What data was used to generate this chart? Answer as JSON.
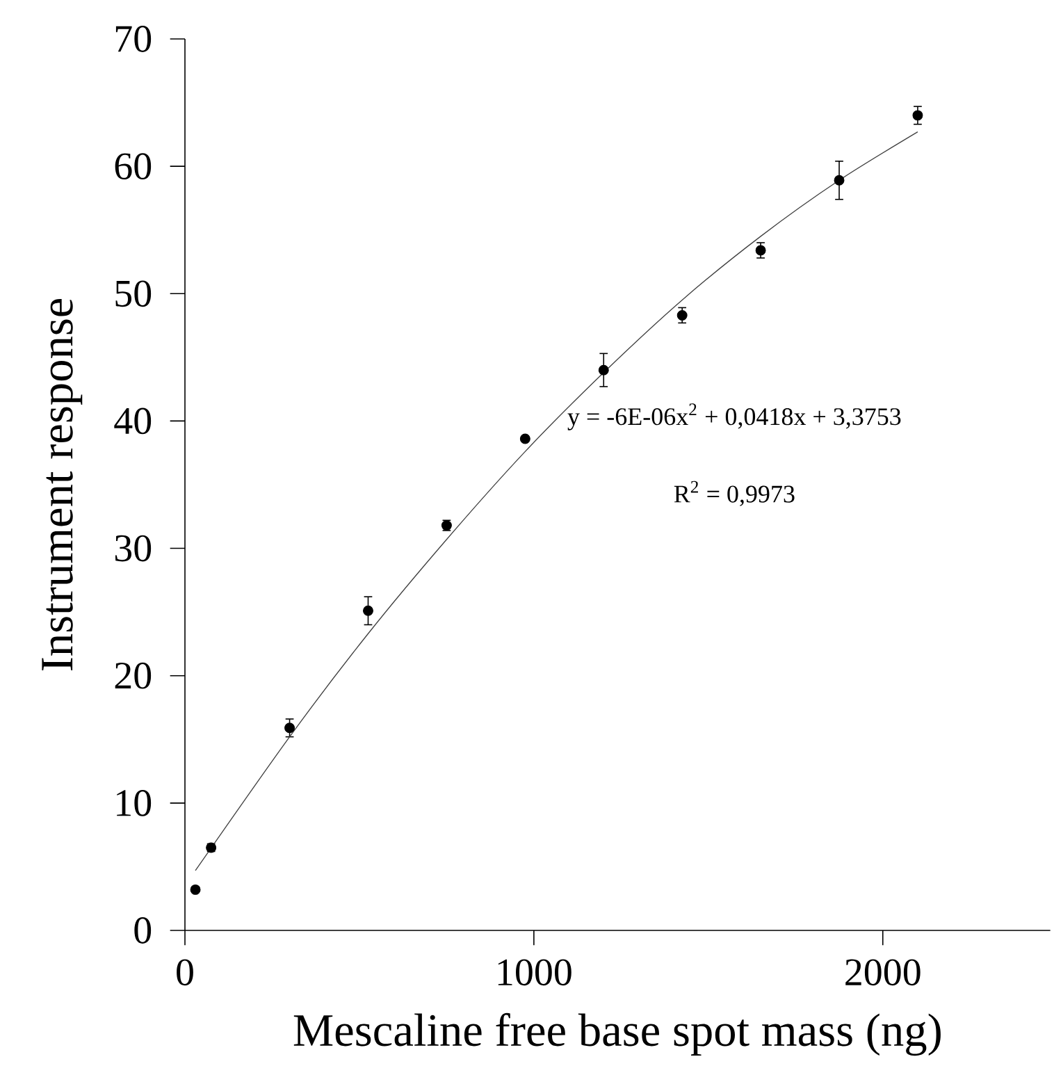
{
  "chart_data": {
    "type": "scatter",
    "xlabel": "Mescaline free base spot mass (ng)",
    "ylabel": "Instrument response",
    "xlim": [
      0,
      2480
    ],
    "xticks": [
      0,
      1000,
      2000
    ],
    "ylim": [
      0,
      70
    ],
    "yticks": [
      0,
      10,
      20,
      30,
      40,
      50,
      60,
      70
    ],
    "annotations": [
      "y = -6E-06x$^{2}$ + 0,0418x + 3,3753",
      "R$^{2}$ = 0,9973"
    ],
    "series": [
      {
        "type": "scatter",
        "color": "#000000",
        "marker": "circle",
        "x": [
          30,
          75,
          300,
          525,
          750,
          975,
          1200,
          1425,
          1650,
          1875,
          2100
        ],
        "values": [
          3.2,
          6.5,
          15.9,
          25.1,
          31.8,
          38.6,
          44.0,
          48.3,
          53.4,
          58.9,
          64.0
        ],
        "errors": [
          null,
          0.3,
          0.7,
          1.1,
          0.4,
          null,
          1.3,
          0.6,
          0.6,
          1.5,
          0.7
        ]
      },
      {
        "type": "line",
        "color": "#404040",
        "marker": "none",
        "line_style": "solid",
        "x": [
          30,
          300,
          525,
          750,
          975,
          1200,
          1425,
          1650,
          1875,
          2100
        ],
        "values": [
          4.7,
          15.2,
          23.3,
          30.7,
          37.6,
          43.8,
          49.5,
          54.5,
          58.9,
          62.7
        ]
      }
    ]
  }
}
